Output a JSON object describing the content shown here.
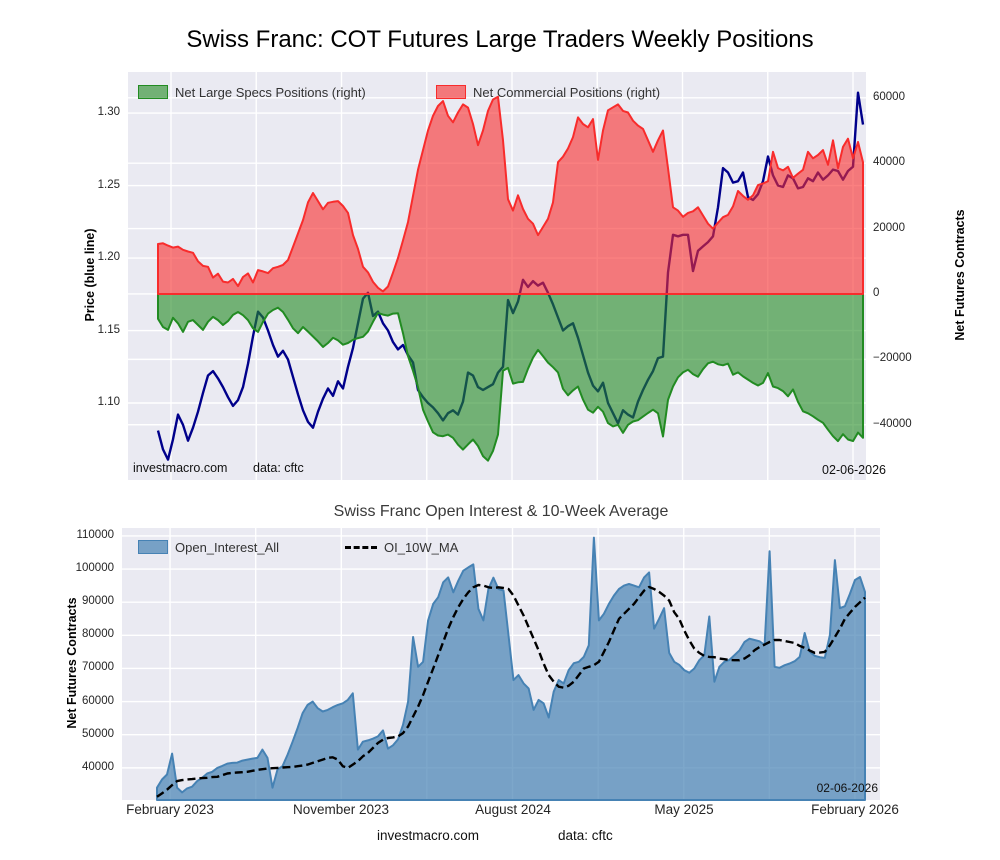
{
  "title": "Swiss Franc: COT Futures Large Traders Weekly Positions",
  "top_chart": {
    "legend": [
      {
        "label": "Net Large Specs Positions (right)",
        "color": "#228b22"
      },
      {
        "label": "Net Commercial Positions (right)",
        "color": "#f82c2c"
      }
    ],
    "left_axis": {
      "title": "Price (blue line)",
      "tick_labels": [
        "1.30",
        "1.25",
        "1.20",
        "1.15",
        "1.10"
      ],
      "tick_values": [
        1.3,
        1.25,
        1.2,
        1.15,
        1.1
      ]
    },
    "right_axis": {
      "title": "Net Futures Contracts",
      "tick_labels": [
        "60000",
        "40000",
        "20000",
        "0",
        "−20000",
        "−40000"
      ],
      "tick_values": [
        60000,
        40000,
        20000,
        0,
        -20000,
        -40000
      ]
    },
    "annotations": {
      "source": "investmacro.com",
      "data_source": "data: cftc",
      "date": "02-06-2026"
    }
  },
  "bottom_chart": {
    "title": "Swiss Franc Open Interest & 10-Week Average",
    "legend": [
      {
        "label": "Open_Interest_All",
        "color": "#4682b4"
      },
      {
        "label": "OI_10W_MA",
        "color": "#000000"
      }
    ],
    "left_axis": {
      "title": "Net Futures Contracts",
      "tick_labels": [
        "110000",
        "100000",
        "90000",
        "80000",
        "70000",
        "60000",
        "50000",
        "40000"
      ],
      "tick_values": [
        110000,
        100000,
        90000,
        80000,
        70000,
        60000,
        50000,
        40000
      ]
    },
    "annotations": {
      "date": "02-06-2026"
    }
  },
  "footer": {
    "source": "investmacro.com",
    "data_source": "data: cftc"
  },
  "colors": {
    "plot_bg": "#eaeaf2",
    "grid": "#ffffff",
    "price_line": "#00008b",
    "commercial": "#f82c2c",
    "specs": "#228b22",
    "open_interest": "#4682b4",
    "ma": "#000000",
    "fill_alpha_top": 0.6,
    "fill_alpha_oi": 0.7
  },
  "chart_data": [
    {
      "type": "area",
      "title": "Swiss Franc: COT Futures Large Traders Weekly Positions",
      "x_ticks": [
        "February 2023",
        "November 2023",
        "August 2024",
        "May 2025",
        "February 2026"
      ],
      "x_tick_positions": [
        2.6,
        36.7,
        70.8,
        104.9,
        139.0
      ],
      "n_points": 142,
      "ylim_left": [
        1.0469,
        1.3283
      ],
      "ylim_right": [
        -56900,
        67900
      ],
      "ylabel_left": "Price (blue line)",
      "ylabel_right": "Net Futures Contracts",
      "legend_position": "upper left, horizontal",
      "grid": true,
      "series": [
        {
          "name": "Net Large Specs Positions (right)",
          "type": "area",
          "axis": "right",
          "values": [
            -7600,
            -10100,
            -11000,
            -7300,
            -9000,
            -11600,
            -8500,
            -8000,
            -9500,
            -11000,
            -8500,
            -7000,
            -8000,
            -9500,
            -8300,
            -6400,
            -5500,
            -6500,
            -8000,
            -10500,
            -11600,
            -8500,
            -6000,
            -4900,
            -4200,
            -5500,
            -7900,
            -10500,
            -12000,
            -10100,
            -11500,
            -13000,
            -14500,
            -16200,
            -15000,
            -13400,
            -14200,
            -15500,
            -15000,
            -14000,
            -13500,
            -13100,
            -11500,
            -8500,
            -5800,
            -6300,
            -6600,
            -6000,
            -5900,
            -12000,
            -19000,
            -23500,
            -28500,
            -35400,
            -39000,
            -42300,
            -43300,
            -43500,
            -43000,
            -44000,
            -46100,
            -47600,
            -46000,
            -44500,
            -46500,
            -49600,
            -51000,
            -48000,
            -43000,
            -23500,
            -22600,
            -27400,
            -27000,
            -26900,
            -22900,
            -19500,
            -17100,
            -19000,
            -21000,
            -22400,
            -24000,
            -29000,
            -31000,
            -29500,
            -28300,
            -32300,
            -35400,
            -36300,
            -34500,
            -36000,
            -39500,
            -40500,
            -40000,
            -42500,
            -40000,
            -39000,
            -38600,
            -37500,
            -36400,
            -35400,
            -36500,
            -43600,
            -32400,
            -28300,
            -25500,
            -24000,
            -23200,
            -24500,
            -25300,
            -23000,
            -21200,
            -20700,
            -21500,
            -21800,
            -21300,
            -24700,
            -24000,
            -25200,
            -26200,
            -27200,
            -28000,
            -27200,
            -24200,
            -28300,
            -28800,
            -29700,
            -31300,
            -29200,
            -33000,
            -35900,
            -36500,
            -37400,
            -38500,
            -39400,
            -41500,
            -43500,
            -45000,
            -42900,
            -44500,
            -45000,
            -42400,
            -44000
          ]
        },
        {
          "name": "Net Commercial Positions (right)",
          "type": "area",
          "axis": "right",
          "values": [
            15300,
            15500,
            14800,
            14200,
            14500,
            13500,
            13000,
            12600,
            10000,
            8600,
            8300,
            5000,
            6200,
            3800,
            3500,
            4600,
            2400,
            5200,
            6300,
            3500,
            7300,
            6900,
            6400,
            7900,
            8300,
            8900,
            10400,
            14400,
            18500,
            22600,
            28000,
            30900,
            28400,
            25900,
            27900,
            28200,
            28400,
            26900,
            24800,
            18000,
            13800,
            8300,
            6600,
            3700,
            1900,
            800,
            2300,
            6500,
            11000,
            16400,
            22000,
            30000,
            38000,
            44000,
            50000,
            54500,
            57500,
            59000,
            54500,
            52500,
            55500,
            58000,
            57000,
            52000,
            45500,
            50000,
            56000,
            59500,
            60300,
            47000,
            29000,
            25500,
            30200,
            26000,
            23000,
            21500,
            18000,
            20500,
            23000,
            28000,
            40300,
            42000,
            44500,
            48000,
            54000,
            52000,
            51000,
            53500,
            41000,
            50000,
            56200,
            57100,
            58000,
            56000,
            55500,
            53000,
            51500,
            50500,
            47000,
            43500,
            47000,
            50000,
            38500,
            26500,
            25500,
            23600,
            24800,
            25300,
            26500,
            24000,
            21500,
            20000,
            21800,
            23500,
            24200,
            26800,
            31500,
            30000,
            28800,
            30200,
            33300,
            33800,
            34500,
            43500,
            38500,
            37800,
            38900,
            35500,
            36800,
            38000,
            43500,
            41500,
            42500,
            44000,
            39500,
            47000,
            38500,
            45000,
            47500,
            41500,
            46500,
            40300
          ]
        },
        {
          "name": "Price",
          "type": "line",
          "axis": "left",
          "values": [
            1.081,
            1.068,
            1.061,
            1.075,
            1.092,
            1.085,
            1.074,
            1.083,
            1.094,
            1.107,
            1.119,
            1.122,
            1.117,
            1.111,
            1.104,
            1.098,
            1.102,
            1.111,
            1.127,
            1.146,
            1.163,
            1.159,
            1.15,
            1.14,
            1.132,
            1.136,
            1.13,
            1.118,
            1.106,
            1.095,
            1.087,
            1.083,
            1.094,
            1.103,
            1.11,
            1.105,
            1.115,
            1.11,
            1.125,
            1.138,
            1.155,
            1.172,
            1.176,
            1.16,
            1.163,
            1.155,
            1.15,
            1.142,
            1.137,
            1.14,
            1.133,
            1.128,
            1.109,
            1.104,
            1.1,
            1.097,
            1.093,
            1.088,
            1.093,
            1.095,
            1.092,
            1.101,
            1.121,
            1.119,
            1.111,
            1.109,
            1.111,
            1.113,
            1.121,
            1.125,
            1.171,
            1.162,
            1.17,
            1.185,
            1.18,
            1.184,
            1.181,
            1.183,
            1.176,
            1.168,
            1.159,
            1.15,
            1.153,
            1.155,
            1.145,
            1.133,
            1.121,
            1.112,
            1.108,
            1.114,
            1.1,
            1.093,
            1.086,
            1.095,
            1.092,
            1.09,
            1.101,
            1.109,
            1.116,
            1.122,
            1.131,
            1.132,
            1.19,
            1.216,
            1.215,
            1.216,
            1.216,
            1.191,
            1.205,
            1.208,
            1.211,
            1.215,
            1.235,
            1.262,
            1.259,
            1.252,
            1.253,
            1.259,
            1.242,
            1.24,
            1.244,
            1.253,
            1.27,
            1.257,
            1.25,
            1.249,
            1.257,
            1.255,
            1.248,
            1.249,
            1.255,
            1.253,
            1.259,
            1.254,
            1.257,
            1.261,
            1.26,
            1.254,
            1.26,
            1.263,
            1.314,
            1.292
          ]
        }
      ]
    },
    {
      "type": "area",
      "title": "Swiss Franc Open Interest & 10-Week Average",
      "x_ticks": [
        "February 2023",
        "November 2023",
        "August 2024",
        "May 2025",
        "February 2026"
      ],
      "x_tick_positions": [
        2.6,
        36.7,
        70.8,
        104.9,
        139.0
      ],
      "n_points": 142,
      "ylim": [
        30300,
        112400
      ],
      "ylabel": "Net Futures Contracts",
      "legend_position": "upper left, horizontal",
      "grid": true,
      "series": [
        {
          "name": "Open_Interest_All",
          "type": "area",
          "values": [
            34000,
            36500,
            38000,
            44300,
            34000,
            32600,
            33800,
            34300,
            36000,
            37000,
            38300,
            38800,
            40000,
            40600,
            41300,
            41500,
            41600,
            42200,
            42500,
            42800,
            43000,
            45500,
            43000,
            34000,
            39500,
            40500,
            44000,
            47900,
            52000,
            56500,
            59000,
            60000,
            58000,
            57000,
            57500,
            58300,
            59000,
            59500,
            60500,
            62500,
            45500,
            47900,
            48300,
            48800,
            49500,
            51300,
            45800,
            46800,
            48600,
            53000,
            60000,
            79500,
            70500,
            72000,
            84500,
            89500,
            91500,
            96000,
            97500,
            93000,
            96500,
            99500,
            100500,
            101400,
            88000,
            84500,
            94000,
            97400,
            94000,
            93500,
            80000,
            66500,
            68000,
            65500,
            64000,
            57500,
            60500,
            59500,
            55200,
            63000,
            66500,
            65500,
            69500,
            71600,
            72000,
            73500,
            77000,
            109500,
            84500,
            86500,
            89500,
            92000,
            94000,
            95000,
            95500,
            95000,
            94500,
            97500,
            99000,
            82000,
            85000,
            88200,
            74700,
            72000,
            71100,
            69500,
            68700,
            70000,
            72500,
            74000,
            85700,
            66000,
            70500,
            72000,
            72600,
            74000,
            75500,
            78000,
            79000,
            78600,
            78200,
            77100,
            105400,
            70500,
            70200,
            71000,
            71500,
            72200,
            73500,
            80700,
            75000,
            73800,
            73400,
            73200,
            80100,
            102700,
            88200,
            88800,
            92500,
            96700,
            97600,
            93100
          ]
        },
        {
          "name": "OI_10W_MA",
          "type": "dashed-line",
          "values": [
            31300,
            32300,
            33400,
            34800,
            36000,
            36300,
            36500,
            36600,
            36800,
            36900,
            37000,
            37200,
            37300,
            37800,
            38300,
            38500,
            38600,
            38700,
            38800,
            39100,
            39400,
            39600,
            39800,
            39900,
            40000,
            40100,
            40200,
            40300,
            40500,
            40700,
            41000,
            41500,
            42000,
            42500,
            43000,
            43200,
            42500,
            40500,
            40000,
            41000,
            42000,
            43500,
            44500,
            46000,
            47500,
            48500,
            49000,
            49200,
            49500,
            50500,
            52500,
            55500,
            58500,
            62000,
            66000,
            70000,
            74000,
            78000,
            82000,
            85500,
            88500,
            91000,
            93000,
            94500,
            95200,
            95000,
            94500,
            94300,
            94500,
            94300,
            94000,
            92000,
            89000,
            86000,
            82500,
            79000,
            75500,
            71500,
            68000,
            66000,
            64500,
            64200,
            64800,
            66000,
            68000,
            70000,
            70500,
            71000,
            72000,
            75000,
            78000,
            81500,
            85000,
            86500,
            88000,
            89500,
            91500,
            93500,
            94600,
            94000,
            93100,
            92000,
            90500,
            87000,
            85000,
            81500,
            78500,
            76000,
            74700,
            73800,
            73500,
            73400,
            73000,
            72800,
            72600,
            72500,
            72500,
            73000,
            74000,
            75500,
            76500,
            77200,
            78000,
            78600,
            78600,
            78300,
            78000,
            77700,
            76800,
            76200,
            75400,
            74700,
            74800,
            75000,
            77000,
            79500,
            82000,
            85000,
            86800,
            88600,
            90000,
            91400
          ]
        }
      ]
    }
  ]
}
